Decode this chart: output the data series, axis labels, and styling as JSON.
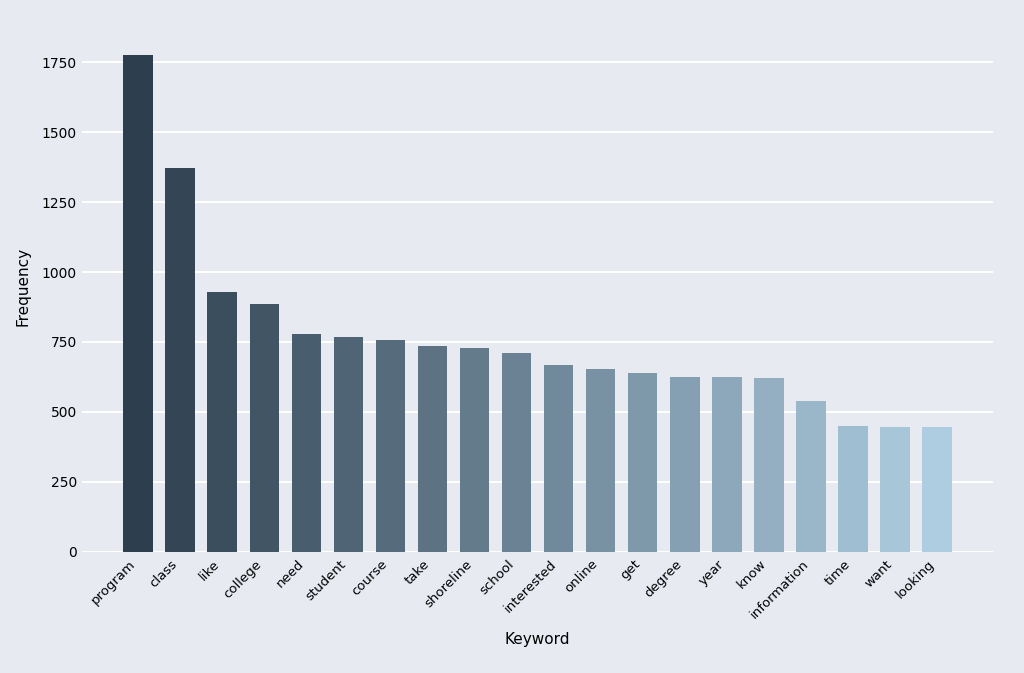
{
  "categories": [
    "program",
    "class",
    "like",
    "college",
    "need",
    "student",
    "course",
    "take",
    "shoreline",
    "school",
    "interested",
    "online",
    "get",
    "degree",
    "year",
    "know",
    "information",
    "time",
    "want",
    "looking"
  ],
  "values": [
    1775,
    1370,
    930,
    885,
    778,
    768,
    758,
    735,
    728,
    710,
    668,
    655,
    640,
    625,
    625,
    622,
    540,
    450,
    445,
    445
  ],
  "xlabel": "Keyword",
  "ylabel": "Frequency",
  "ylim": [
    0,
    1900
  ],
  "background_color": "#e8eaf2",
  "bar_color_start": "#2d3f4e",
  "bar_color_end": "#aecde0",
  "figsize": [
    10.24,
    6.73
  ],
  "dpi": 100,
  "grid_color": "#ffffff",
  "grid_linewidth": 1.5
}
